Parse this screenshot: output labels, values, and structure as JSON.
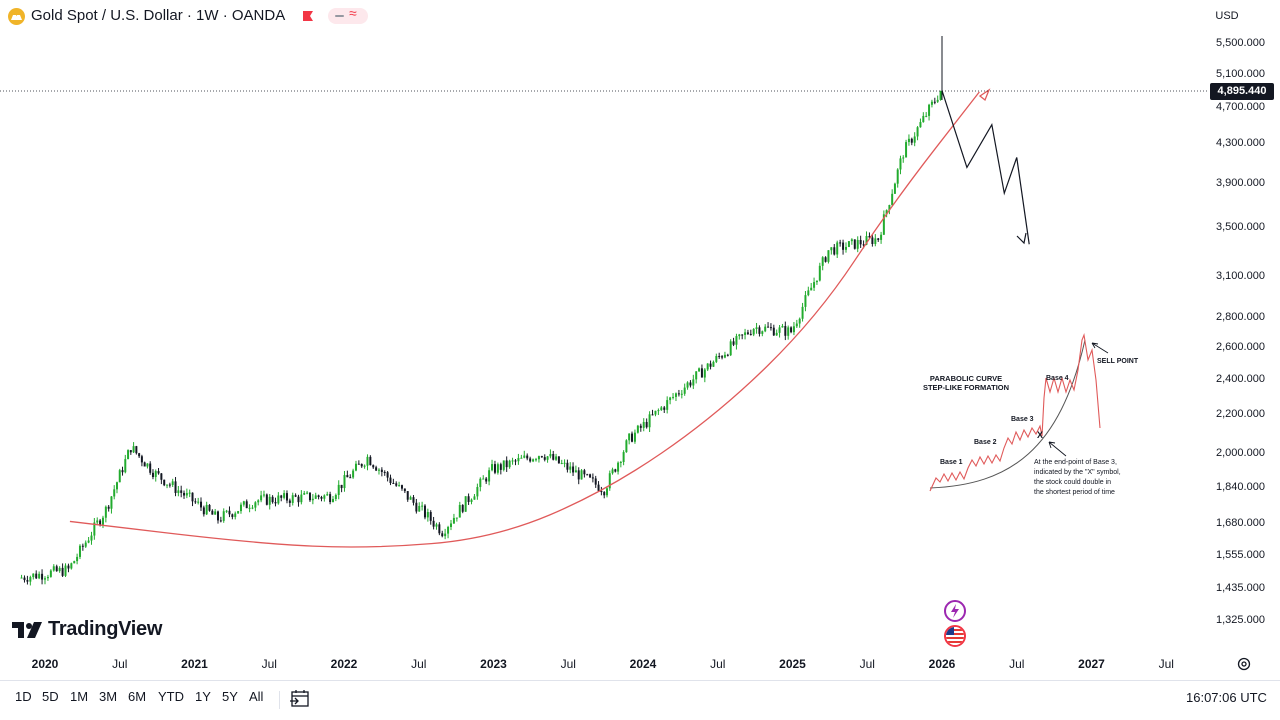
{
  "header": {
    "title": "Gold Spot / U.S. Dollar · 1W · OANDA",
    "currency": "USD"
  },
  "price_axis": {
    "labels": [
      "5,500.000",
      "5,100.000",
      "4,700.000",
      "4,300.000",
      "3,900.000",
      "3,500.000",
      "3,100.000",
      "2,800.000",
      "2,600.000",
      "2,400.000",
      "2,200.000",
      "2,000.000",
      "1,840.000",
      "1,680.000",
      "1,555.000",
      "1,435.000",
      "1,325.000"
    ],
    "last_price": "4,895.440"
  },
  "time_axis": {
    "labels": [
      {
        "text": "2020",
        "year": true
      },
      {
        "text": "Jul",
        "year": false
      },
      {
        "text": "2021",
        "year": true
      },
      {
        "text": "Jul",
        "year": false
      },
      {
        "text": "2022",
        "year": true
      },
      {
        "text": "Jul",
        "year": false
      },
      {
        "text": "2023",
        "year": true
      },
      {
        "text": "Jul",
        "year": false
      },
      {
        "text": "2024",
        "year": true
      },
      {
        "text": "Jul",
        "year": false
      },
      {
        "text": "2025",
        "year": true
      },
      {
        "text": "Jul",
        "year": false
      },
      {
        "text": "2026",
        "year": true
      },
      {
        "text": "Jul",
        "year": false
      },
      {
        "text": "2027",
        "year": true
      },
      {
        "text": "Jul",
        "year": false
      }
    ]
  },
  "range_buttons": [
    "1D",
    "5D",
    "1M",
    "3M",
    "6M",
    "YTD",
    "1Y",
    "5Y",
    "All"
  ],
  "clock": "16:07:06 UTC",
  "logo": {
    "text": "TradingView"
  },
  "inset": {
    "title_line1": "PARABOLIC CURVE",
    "title_line2": "STEP-LIKE FORMATION",
    "base1": "Base 1",
    "base2": "Base 2",
    "base3": "Base 3",
    "base4": "Base 4",
    "sell": "SELL POINT",
    "x_mark": "X",
    "note_line1": "At the end-point of Base 3,",
    "note_line2": "indicated by the \"X\" symbol,",
    "note_line3": "the stock could double in",
    "note_line4": "the shortest period of time"
  },
  "colors": {
    "up": "#089981",
    "up_bright": "#22ab2e",
    "down": "#131722",
    "curve": "#e05a5a",
    "text": "#131722"
  },
  "chart_data": {
    "type": "candlestick",
    "title": "Gold Spot / U.S. Dollar · 1W · OANDA",
    "scale": "log",
    "ylim": [
      1300,
      5700
    ],
    "x_range": [
      "2019-11",
      "2027-09"
    ],
    "last_price": 4895.44,
    "weekly_close_anchors": [
      {
        "date": "2019-11",
        "value": 1470
      },
      {
        "date": "2020-03",
        "value": 1500
      },
      {
        "date": "2020-06",
        "value": 1740
      },
      {
        "date": "2020-08",
        "value": 2030
      },
      {
        "date": "2020-10",
        "value": 1900
      },
      {
        "date": "2021-03",
        "value": 1700
      },
      {
        "date": "2021-06",
        "value": 1780
      },
      {
        "date": "2021-12",
        "value": 1800
      },
      {
        "date": "2022-03",
        "value": 1980
      },
      {
        "date": "2022-09",
        "value": 1650
      },
      {
        "date": "2023-01",
        "value": 1920
      },
      {
        "date": "2023-05",
        "value": 2000
      },
      {
        "date": "2023-10",
        "value": 1830
      },
      {
        "date": "2023-12",
        "value": 2070
      },
      {
        "date": "2024-04",
        "value": 2330
      },
      {
        "date": "2024-10",
        "value": 2730
      },
      {
        "date": "2025-01",
        "value": 2700
      },
      {
        "date": "2025-04",
        "value": 3300
      },
      {
        "date": "2025-08",
        "value": 3400
      },
      {
        "date": "2025-10",
        "value": 4200
      },
      {
        "date": "2026-01",
        "value": 4895
      }
    ],
    "projection": [
      {
        "date": "2026-01",
        "value": 4895
      },
      {
        "date": "2026-03",
        "value": 4050
      },
      {
        "date": "2026-05",
        "value": 4500
      },
      {
        "date": "2026-06",
        "value": 3800
      },
      {
        "date": "2026-07",
        "value": 4150
      },
      {
        "date": "2026-08",
        "value": 3350
      }
    ],
    "parabolic_curve": [
      {
        "date": "2020-03",
        "value": 1690
      },
      {
        "date": "2021-06",
        "value": 1600
      },
      {
        "date": "2022-03",
        "value": 1580
      },
      {
        "date": "2023-01",
        "value": 1620
      },
      {
        "date": "2023-10",
        "value": 1820
      },
      {
        "date": "2024-07",
        "value": 2200
      },
      {
        "date": "2025-03",
        "value": 2800
      },
      {
        "date": "2025-09",
        "value": 3700
      },
      {
        "date": "2026-04",
        "value": 4880
      }
    ]
  }
}
